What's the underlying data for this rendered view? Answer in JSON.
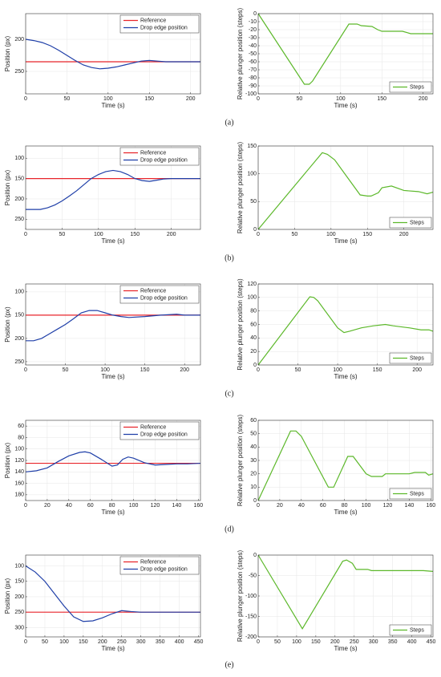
{
  "chart_data": [
    {
      "type": "line",
      "xlabel": "Time (s)",
      "ylabel": "Position (px)",
      "xlim": [
        0,
        212
      ],
      "xticks": [
        0,
        50,
        100,
        150,
        200
      ],
      "ylim": [
        160,
        285
      ],
      "yticks": [
        200,
        250
      ],
      "y_reversed": true,
      "grid": true,
      "legend": "upper right",
      "x": [
        0,
        10,
        20,
        30,
        40,
        50,
        60,
        70,
        80,
        90,
        100,
        110,
        120,
        130,
        140,
        150,
        160,
        170,
        180,
        190,
        200,
        212
      ],
      "series": [
        {
          "name": "Reference",
          "color": "#e8252b",
          "values": [
            235,
            235,
            235,
            235,
            235,
            235,
            235,
            235,
            235,
            235,
            235,
            235,
            235,
            235,
            235,
            235,
            235,
            235,
            235,
            235,
            235,
            235
          ]
        },
        {
          "name": "Drop edge position",
          "color": "#1f3fa8",
          "values": [
            200,
            202,
            205,
            210,
            217,
            225,
            233,
            240,
            244,
            246,
            245,
            243,
            240,
            237,
            234,
            233,
            234,
            235,
            235,
            235,
            235,
            235
          ]
        }
      ]
    },
    {
      "type": "line",
      "xlabel": "Time (s)",
      "ylabel": "Relative plunger position (steps)",
      "xlim": [
        0,
        212
      ],
      "xticks": [
        0,
        50,
        100,
        150,
        200
      ],
      "ylim": [
        -100,
        0
      ],
      "yticks": [
        -100,
        -90,
        -80,
        -70,
        -60,
        -50,
        -40,
        -30,
        -20,
        -10,
        0
      ],
      "grid": true,
      "legend": "lower right",
      "x": [
        0,
        56,
        62,
        66,
        110,
        120,
        125,
        138,
        145,
        150,
        175,
        185,
        212
      ],
      "series": [
        {
          "name": "Steps",
          "color": "#5cb82a",
          "values": [
            0,
            -88,
            -88,
            -84,
            -13,
            -13,
            -15,
            -16,
            -20,
            -22,
            -22,
            -25,
            -25
          ]
        }
      ]
    },
    {
      "type": "line",
      "xlabel": "Time (s)",
      "ylabel": "Position (px)",
      "xlim": [
        0,
        240
      ],
      "xticks": [
        0,
        50,
        100,
        150,
        200
      ],
      "ylim": [
        70,
        275
      ],
      "yticks": [
        100,
        150,
        200,
        250
      ],
      "y_reversed": true,
      "grid": true,
      "legend": "upper right",
      "x": [
        0,
        20,
        30,
        40,
        50,
        60,
        70,
        80,
        90,
        100,
        110,
        120,
        130,
        140,
        150,
        160,
        170,
        180,
        190,
        200,
        220,
        240
      ],
      "series": [
        {
          "name": "Reference",
          "color": "#e8252b",
          "values": [
            150,
            150,
            150,
            150,
            150,
            150,
            150,
            150,
            150,
            150,
            150,
            150,
            150,
            150,
            150,
            150,
            150,
            150,
            150,
            150,
            150,
            150
          ]
        },
        {
          "name": "Drop edge position",
          "color": "#1f3fa8",
          "values": [
            226,
            226,
            222,
            215,
            205,
            193,
            180,
            165,
            150,
            140,
            133,
            130,
            133,
            140,
            150,
            155,
            157,
            154,
            151,
            150,
            150,
            150
          ]
        }
      ]
    },
    {
      "type": "line",
      "xlabel": "Time (s)",
      "ylabel": "Relative plunger position (steps)",
      "xlim": [
        0,
        240
      ],
      "xticks": [
        0,
        50,
        100,
        150,
        200
      ],
      "ylim": [
        0,
        150
      ],
      "yticks": [
        0,
        50,
        100,
        150
      ],
      "grid": true,
      "legend": "lower right",
      "x": [
        0,
        88,
        95,
        105,
        140,
        150,
        155,
        165,
        170,
        183,
        200,
        220,
        232,
        240
      ],
      "series": [
        {
          "name": "Steps",
          "color": "#5cb82a",
          "values": [
            0,
            138,
            135,
            125,
            62,
            60,
            60,
            66,
            75,
            78,
            70,
            68,
            64,
            67
          ]
        }
      ]
    },
    {
      "type": "line",
      "xlabel": "Time (s)",
      "ylabel": "Position (px)",
      "xlim": [
        0,
        220
      ],
      "xticks": [
        0,
        50,
        100,
        150,
        200
      ],
      "ylim": [
        83,
        257
      ],
      "yticks": [
        100,
        150,
        200,
        250
      ],
      "y_reversed": true,
      "grid": true,
      "legend": "upper right",
      "x": [
        0,
        10,
        20,
        30,
        40,
        50,
        60,
        70,
        80,
        90,
        100,
        110,
        120,
        130,
        150,
        170,
        190,
        200,
        220
      ],
      "series": [
        {
          "name": "Reference",
          "color": "#e8252b",
          "values": [
            150,
            150,
            150,
            150,
            150,
            150,
            150,
            150,
            150,
            150,
            150,
            150,
            150,
            150,
            150,
            150,
            150,
            150,
            150
          ]
        },
        {
          "name": "Drop edge position",
          "color": "#1f3fa8",
          "values": [
            205,
            205,
            200,
            190,
            180,
            170,
            158,
            145,
            140,
            140,
            145,
            150,
            153,
            155,
            153,
            150,
            148,
            150,
            150
          ]
        }
      ]
    },
    {
      "type": "line",
      "xlabel": "Time (s)",
      "ylabel": "Relative plunger position (steps)",
      "xlim": [
        0,
        220
      ],
      "xticks": [
        0,
        50,
        100,
        150,
        200
      ],
      "ylim": [
        0,
        120
      ],
      "yticks": [
        0,
        20,
        40,
        60,
        80,
        100,
        120
      ],
      "grid": true,
      "legend": "lower right",
      "x": [
        0,
        65,
        70,
        75,
        100,
        108,
        115,
        130,
        145,
        160,
        170,
        190,
        205,
        215,
        220
      ],
      "series": [
        {
          "name": "Steps",
          "color": "#5cb82a",
          "values": [
            0,
            101,
            100,
            95,
            55,
            48,
            50,
            55,
            58,
            60,
            58,
            55,
            52,
            52,
            50
          ]
        }
      ]
    },
    {
      "type": "line",
      "xlabel": "Time (s)",
      "ylabel": "Position (px)",
      "xlim": [
        0,
        162
      ],
      "xticks": [
        0,
        20,
        40,
        60,
        80,
        100,
        120,
        140,
        160
      ],
      "ylim": [
        50,
        190
      ],
      "yticks": [
        60,
        80,
        100,
        120,
        140,
        160,
        180
      ],
      "y_reversed": true,
      "grid": true,
      "legend": "upper right",
      "x": [
        0,
        10,
        20,
        30,
        40,
        50,
        55,
        60,
        70,
        80,
        85,
        90,
        95,
        100,
        110,
        120,
        130,
        140,
        150,
        162
      ],
      "series": [
        {
          "name": "Reference",
          "color": "#e8252b",
          "values": [
            125,
            125,
            125,
            125,
            125,
            125,
            125,
            125,
            125,
            125,
            125,
            125,
            125,
            125,
            125,
            125,
            125,
            125,
            125,
            125
          ]
        },
        {
          "name": "Drop edge position",
          "color": "#1f3fa8",
          "values": [
            140,
            138,
            133,
            122,
            112,
            106,
            105,
            107,
            118,
            130,
            128,
            118,
            114,
            116,
            124,
            128,
            127,
            126,
            126,
            125
          ]
        }
      ]
    },
    {
      "type": "line",
      "xlabel": "Time (s)",
      "ylabel": "Relative plunger position (steps)",
      "xlim": [
        0,
        162
      ],
      "xticks": [
        0,
        20,
        40,
        60,
        80,
        100,
        120,
        140,
        160
      ],
      "ylim": [
        0,
        60
      ],
      "yticks": [
        0,
        10,
        20,
        30,
        40,
        50,
        60
      ],
      "grid": true,
      "legend": "lower right",
      "x": [
        0,
        30,
        35,
        40,
        65,
        70,
        83,
        88,
        100,
        105,
        115,
        118,
        140,
        145,
        155,
        158,
        162
      ],
      "series": [
        {
          "name": "Steps",
          "color": "#5cb82a",
          "values": [
            0,
            52,
            52,
            48,
            10,
            10,
            33,
            33,
            20,
            18,
            18,
            20,
            20,
            21,
            21,
            19,
            20
          ]
        }
      ]
    },
    {
      "type": "line",
      "xlabel": "Time (s)",
      "ylabel": "Position (px)",
      "xlim": [
        0,
        455
      ],
      "xticks": [
        0,
        50,
        100,
        150,
        200,
        250,
        300,
        350,
        400,
        450
      ],
      "ylim": [
        65,
        330
      ],
      "yticks": [
        100,
        150,
        200,
        250,
        300
      ],
      "y_reversed": true,
      "grid": true,
      "legend": "upper right",
      "x": [
        0,
        25,
        50,
        75,
        100,
        125,
        150,
        175,
        200,
        225,
        250,
        275,
        300,
        350,
        400,
        455
      ],
      "series": [
        {
          "name": "Reference",
          "color": "#e8252b",
          "values": [
            250,
            250,
            250,
            250,
            250,
            250,
            250,
            250,
            250,
            250,
            250,
            250,
            250,
            250,
            250,
            250
          ]
        },
        {
          "name": "Drop edge position",
          "color": "#1f3fa8",
          "values": [
            100,
            120,
            150,
            190,
            230,
            265,
            280,
            278,
            268,
            255,
            245,
            248,
            250,
            250,
            250,
            250
          ]
        }
      ]
    },
    {
      "type": "line",
      "xlabel": "Time (s)",
      "ylabel": "Relative plunger position (steps)",
      "xlim": [
        0,
        455
      ],
      "xticks": [
        0,
        50,
        100,
        150,
        200,
        250,
        300,
        350,
        400,
        450
      ],
      "ylim": [
        -200,
        0
      ],
      "yticks": [
        -200,
        -150,
        -100,
        -50,
        0
      ],
      "grid": true,
      "legend": "lower right",
      "x": [
        0,
        115,
        220,
        230,
        245,
        255,
        285,
        295,
        430,
        455
      ],
      "series": [
        {
          "name": "Steps",
          "color": "#5cb82a",
          "values": [
            0,
            -180,
            -15,
            -12,
            -20,
            -35,
            -35,
            -38,
            -38,
            -40
          ]
        }
      ]
    }
  ],
  "captions": [
    "(a)",
    "(b)",
    "(c)",
    "(d)",
    "(e)"
  ]
}
